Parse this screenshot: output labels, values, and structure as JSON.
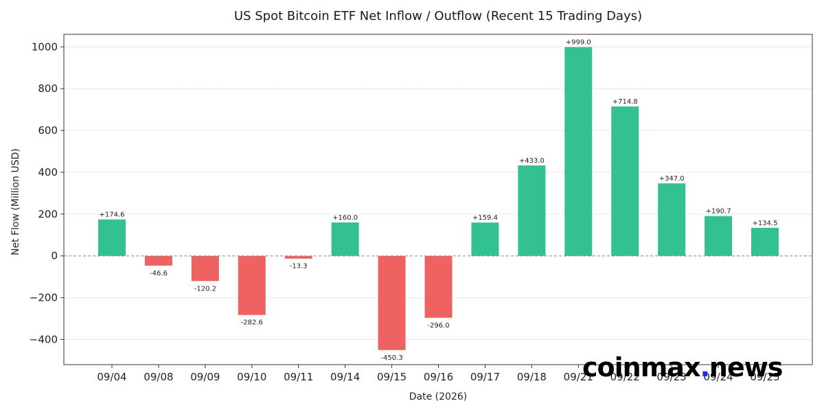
{
  "chart_data": {
    "type": "bar",
    "title": "US Spot Bitcoin ETF Net Inflow / Outflow (Recent 15 Trading Days)",
    "xlabel": "Date (2026)",
    "ylabel": "Net Flow (Million USD)",
    "categories": [
      "09/04",
      "09/08",
      "09/09",
      "09/10",
      "09/11",
      "09/14",
      "09/15",
      "09/16",
      "09/17",
      "09/18",
      "09/21",
      "09/22",
      "09/23",
      "09/24",
      "09/25"
    ],
    "values": [
      174.6,
      -46.6,
      -120.2,
      -282.6,
      -13.3,
      160.0,
      -450.3,
      -296.0,
      159.4,
      433.0,
      999.0,
      714.8,
      347.0,
      190.7,
      134.5
    ],
    "data_labels": [
      "+174.6",
      "-46.6",
      "-120.2",
      "-282.6",
      "-13.3",
      "+160.0",
      "-450.3",
      "-296.0",
      "+159.4",
      "+433.0",
      "+999.0",
      "+714.8",
      "+347.0",
      "+190.7",
      "+134.5"
    ],
    "ylim": [
      -520,
      1060
    ],
    "yticks": [
      -400,
      -200,
      0,
      200,
      400,
      600,
      800,
      1000
    ],
    "ytick_labels": [
      "−400",
      "−200",
      "0",
      "200",
      "400",
      "600",
      "800",
      "1000"
    ],
    "grid": true,
    "zero_line": true,
    "colors": {
      "positive": "#33c191",
      "negative": "#ef6262",
      "grid": "#d6d6d6",
      "zero": "#888888"
    }
  },
  "watermark": {
    "text_left": "coinmax",
    "dot_color": "#1d2ff0",
    "text_right": "news"
  }
}
